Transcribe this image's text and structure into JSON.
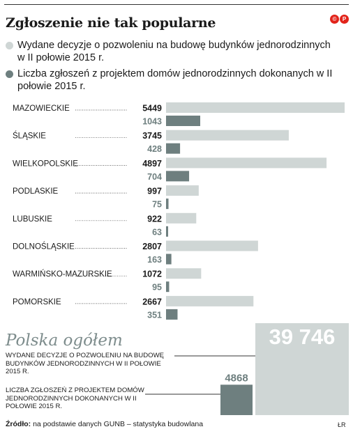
{
  "title": "Zgłoszenie nie tak popularne",
  "logo": [
    "©",
    "P"
  ],
  "legend": [
    {
      "text": "Wydane decyzje o pozwoleniu na budowę budynków jednorodzinnych w II połowie 2015 r.",
      "color": "#cfd6d5"
    },
    {
      "text": "Liczba zgłoszeń z projektem domów jednorodzinnych dokonanych w II połowie 2015 r.",
      "color": "#6e7f7f"
    }
  ],
  "chart_data": {
    "type": "bar",
    "categories": [
      "MAZOWIECKIE",
      "ŚLĄSKIE",
      "WIELKOPOLSKIE",
      "PODLASKIE",
      "LUBUSKIE",
      "DOLNOŚLĄSKIE",
      "WARMIŃSKO-MAZURSKIE",
      "POMORSKIE"
    ],
    "series": [
      {
        "name": "Wydane decyzje o pozwoleniu na budowę budynków jednorodzinnych w II połowie 2015 r.",
        "values": [
          5449,
          3745,
          4897,
          997,
          922,
          2807,
          1072,
          2667
        ],
        "color": "#cfd6d5"
      },
      {
        "name": "Liczba zgłoszeń z projektem domów jednorodzinnych dokonanych w II połowie 2015 r.",
        "values": [
          1043,
          428,
          704,
          75,
          63,
          163,
          95,
          351
        ],
        "color": "#6e7f7f"
      }
    ],
    "xlim": [
      0,
      5449
    ]
  },
  "totals": {
    "heading": "Polska ogółem",
    "permits": {
      "label": "WYDANE DECYZJE O POZWOLENIU NA BUDOWĘ BUDYNKÓW JEDNORODZINNYCH W II POŁOWIE 2015 R.",
      "value_text": "39 746",
      "value": 39746,
      "color": "#cfd6d5"
    },
    "notifications": {
      "label": "LICZBA ZGŁOSZEŃ Z PROJEKTEM DOMÓW JEDNORODZINNYCH DOKONANYCH W II POŁOWIE 2015 R.",
      "value_text": "4868",
      "value": 4868,
      "color": "#6e7f7f"
    }
  },
  "source": {
    "lead": "Źródło:",
    "text": " na podstawie danych GUNB – statystyka budowlana"
  },
  "credit": "ŁR"
}
